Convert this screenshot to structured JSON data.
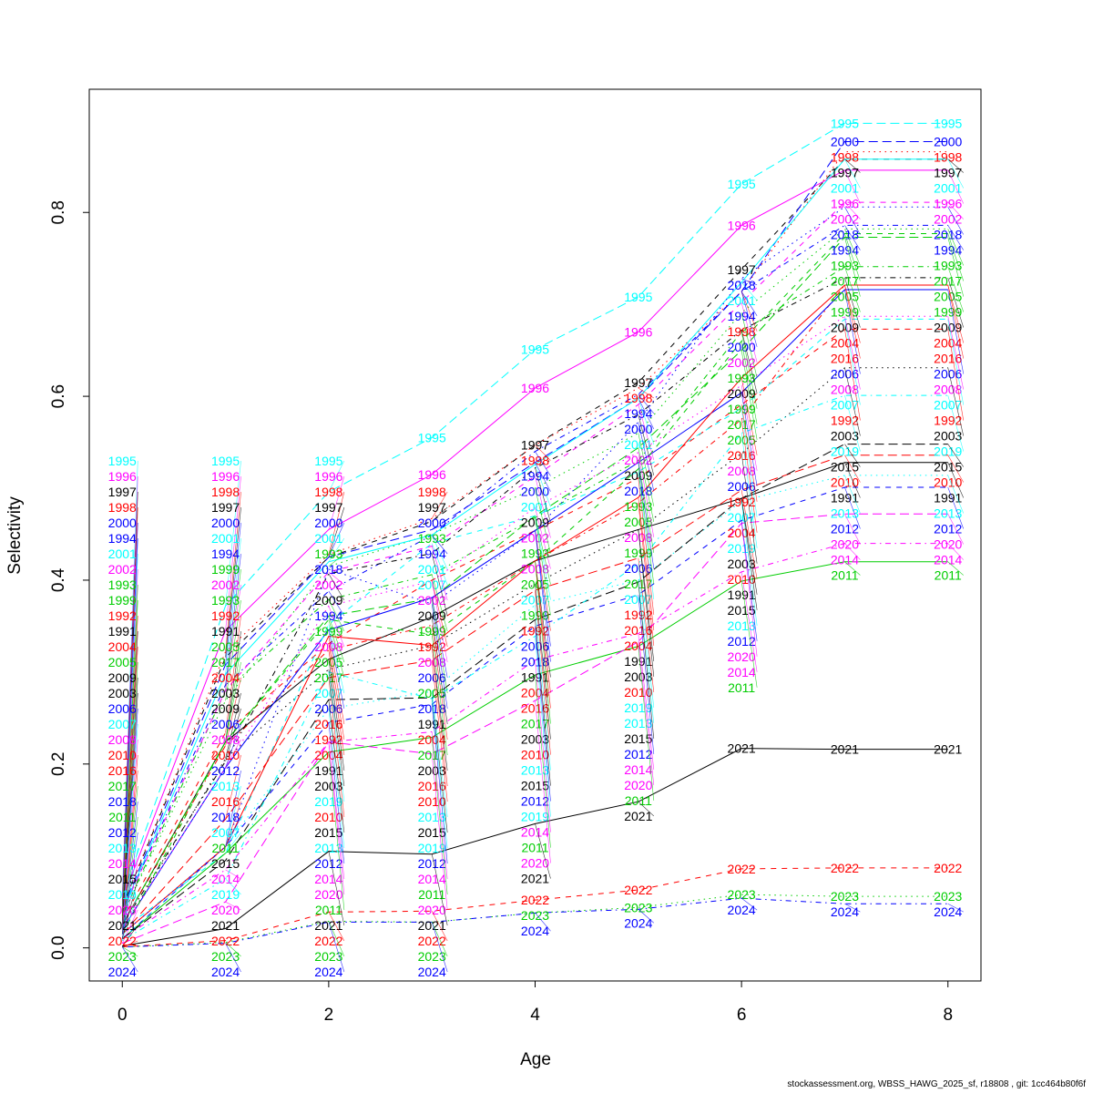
{
  "chart_data": {
    "type": "line",
    "title": "",
    "xlabel": "Age",
    "ylabel": "Selectivity",
    "xlim": [
      -0.32,
      8.32
    ],
    "ylim": [
      -0.036,
      0.934
    ],
    "x_ticks": [
      "0",
      "2",
      "4",
      "6",
      "8"
    ],
    "y_ticks": [
      "0.0",
      "0.2",
      "0.4",
      "0.6",
      "0.8"
    ],
    "grid": false,
    "legend": "none (year labels at each point)",
    "x": [
      0,
      1,
      2,
      3,
      4,
      5,
      6,
      7,
      8
    ],
    "series": [
      {
        "name": "1991",
        "color": "#000000",
        "lty": "solid",
        "values": [
          0.025,
          0.224,
          0.314,
          0.36,
          0.421,
          0.455,
          0.489,
          0.528,
          0.528
        ]
      },
      {
        "name": "1992",
        "color": "#FF0000",
        "lty": "dashed",
        "values": [
          0.03,
          0.234,
          0.331,
          0.4,
          0.454,
          0.511,
          0.591,
          0.673,
          0.673
        ]
      },
      {
        "name": "1993",
        "color": "#00CD00",
        "lty": "dotted",
        "values": [
          0.035,
          0.269,
          0.415,
          0.45,
          0.5,
          0.56,
          0.691,
          0.782,
          0.782
        ]
      },
      {
        "name": "1994",
        "color": "#0000FF",
        "lty": "dotdash",
        "values": [
          0.04,
          0.286,
          0.388,
          0.449,
          0.54,
          0.602,
          0.714,
          0.786,
          0.786
        ]
      },
      {
        "name": "1995",
        "color": "#00FFFF",
        "lty": "longdash",
        "values": [
          0.057,
          0.372,
          0.496,
          0.555,
          0.651,
          0.708,
          0.831,
          0.897,
          0.897
        ]
      },
      {
        "name": "1996",
        "color": "#FF00FF",
        "lty": "solid",
        "values": [
          0.052,
          0.345,
          0.455,
          0.515,
          0.609,
          0.67,
          0.786,
          0.846,
          0.846
        ]
      },
      {
        "name": "1997",
        "color": "#000000",
        "lty": "dashed",
        "values": [
          0.045,
          0.316,
          0.425,
          0.464,
          0.547,
          0.615,
          0.738,
          0.858,
          0.858
        ]
      },
      {
        "name": "1998",
        "color": "#FF0000",
        "lty": "dotted",
        "values": [
          0.045,
          0.322,
          0.428,
          0.467,
          0.547,
          0.609,
          0.714,
          0.866,
          0.866
        ]
      },
      {
        "name": "1999",
        "color": "#00CD00",
        "lty": "dotdash",
        "values": [
          0.035,
          0.28,
          0.379,
          0.406,
          0.468,
          0.53,
          0.67,
          0.741,
          0.741
        ]
      },
      {
        "name": "2000",
        "color": "#0000FF",
        "lty": "longdash",
        "values": [
          0.042,
          0.308,
          0.425,
          0.455,
          0.528,
          0.598,
          0.714,
          0.877,
          0.877
        ]
      },
      {
        "name": "2001",
        "color": "#00FFFF",
        "lty": "solid",
        "values": [
          0.04,
          0.298,
          0.42,
          0.449,
          0.526,
          0.598,
          0.724,
          0.858,
          0.858
        ]
      },
      {
        "name": "2002",
        "color": "#FF00FF",
        "lty": "dashed",
        "values": [
          0.04,
          0.28,
          0.409,
          0.437,
          0.513,
          0.591,
          0.702,
          0.811,
          0.811
        ]
      },
      {
        "name": "2003",
        "color": "#000000",
        "lty": "dotted",
        "values": [
          0.02,
          0.206,
          0.303,
          0.329,
          0.396,
          0.455,
          0.538,
          0.631,
          0.631
        ]
      },
      {
        "name": "2004",
        "color": "#FF0000",
        "lty": "dotdash",
        "values": [
          0.025,
          0.22,
          0.324,
          0.351,
          0.421,
          0.484,
          0.575,
          0.721,
          0.721
        ]
      },
      {
        "name": "2005",
        "color": "#00CD00",
        "lty": "longdash",
        "values": [
          0.025,
          0.224,
          0.361,
          0.38,
          0.47,
          0.544,
          0.65,
          0.773,
          0.773
        ]
      },
      {
        "name": "2006",
        "color": "#0000FF",
        "lty": "solid",
        "values": [
          0.02,
          0.196,
          0.346,
          0.381,
          0.454,
          0.528,
          0.604,
          0.716,
          0.716
        ]
      },
      {
        "name": "2007",
        "color": "#00FFFF",
        "lty": "dashed",
        "values": [
          0.02,
          0.103,
          0.352,
          0.44,
          0.47,
          0.518,
          0.587,
          0.684,
          0.684
        ]
      },
      {
        "name": "2008",
        "color": "#FF00FF",
        "lty": "dotted",
        "values": [
          0.02,
          0.196,
          0.372,
          0.399,
          0.479,
          0.539,
          0.612,
          0.687,
          0.687
        ]
      },
      {
        "name": "2009",
        "color": "#000000",
        "lty": "dotdash",
        "values": [
          0.025,
          0.203,
          0.407,
          0.429,
          0.522,
          0.58,
          0.672,
          0.729,
          0.729
        ]
      },
      {
        "name": "2010",
        "color": "#FF0000",
        "lty": "longdash",
        "values": [
          0.015,
          0.14,
          0.294,
          0.313,
          0.389,
          0.424,
          0.498,
          0.536,
          0.536
        ]
      },
      {
        "name": "2011",
        "color": "#00CD00",
        "lty": "solid",
        "values": [
          0.01,
          0.103,
          0.213,
          0.229,
          0.297,
          0.328,
          0.399,
          0.42,
          0.42
        ]
      },
      {
        "name": "2012",
        "color": "#0000FF",
        "lty": "dashed",
        "values": [
          0.01,
          0.11,
          0.245,
          0.265,
          0.35,
          0.384,
          0.465,
          0.501,
          0.501
        ]
      },
      {
        "name": "2013",
        "color": "#00FFFF",
        "lty": "dotted",
        "values": [
          0.01,
          0.11,
          0.26,
          0.279,
          0.373,
          0.4,
          0.486,
          0.514,
          0.514
        ]
      },
      {
        "name": "2014",
        "color": "#FF00FF",
        "lty": "dotdash",
        "values": [
          0.01,
          0.085,
          0.224,
          0.235,
          0.313,
          0.342,
          0.409,
          0.44,
          0.44
        ]
      },
      {
        "name": "2015",
        "color": "#000000",
        "lty": "longdash",
        "values": [
          0.01,
          0.095,
          0.27,
          0.272,
          0.357,
          0.398,
          0.489,
          0.548,
          0.548
        ]
      },
      {
        "name": "2016",
        "color": "#FF0000",
        "lty": "solid",
        "values": [
          0.015,
          0.11,
          0.339,
          0.329,
          0.421,
          0.49,
          0.62,
          0.721,
          0.721
        ]
      },
      {
        "name": "2017",
        "color": "#00CD00",
        "lty": "dashed",
        "values": [
          0.015,
          0.224,
          0.357,
          0.341,
          0.421,
          0.521,
          0.66,
          0.777,
          0.777
        ]
      },
      {
        "name": "2018",
        "color": "#0000FF",
        "lty": "dotted",
        "values": [
          0.015,
          0.11,
          0.412,
          0.374,
          0.454,
          0.572,
          0.728,
          0.806,
          0.806
        ]
      },
      {
        "name": "2019",
        "color": "#00FFFF",
        "lty": "dotdash",
        "values": [
          0.008,
          0.075,
          0.3,
          0.271,
          0.339,
          0.418,
          0.56,
          0.601,
          0.601
        ]
      },
      {
        "name": "2020",
        "color": "#FF00FF",
        "lty": "longdash",
        "values": [
          0.005,
          0.05,
          0.224,
          0.211,
          0.269,
          0.333,
          0.462,
          0.472,
          0.472
        ]
      },
      {
        "name": "2021",
        "color": "#000000",
        "lty": "solid",
        "values": [
          0.002,
          0.021,
          0.105,
          0.102,
          0.135,
          0.159,
          0.217,
          0.216,
          0.216
        ]
      },
      {
        "name": "2022",
        "color": "#FF0000",
        "lty": "dashed",
        "values": [
          0.001,
          0.008,
          0.039,
          0.04,
          0.052,
          0.063,
          0.086,
          0.087,
          0.087
        ]
      },
      {
        "name": "2023",
        "color": "#00CD00",
        "lty": "dotted",
        "values": [
          0.001,
          0.006,
          0.029,
          0.028,
          0.038,
          0.044,
          0.058,
          0.056,
          0.056
        ]
      },
      {
        "name": "2024",
        "color": "#0000FF",
        "lty": "dotdash",
        "values": [
          0.001,
          0.005,
          0.028,
          0.028,
          0.038,
          0.042,
          0.054,
          0.048,
          0.048
        ]
      }
    ]
  },
  "footer": "stockassessment.org, WBSS_HAWG_2025_sf, r18808 , git: 1cc464b80f6f"
}
